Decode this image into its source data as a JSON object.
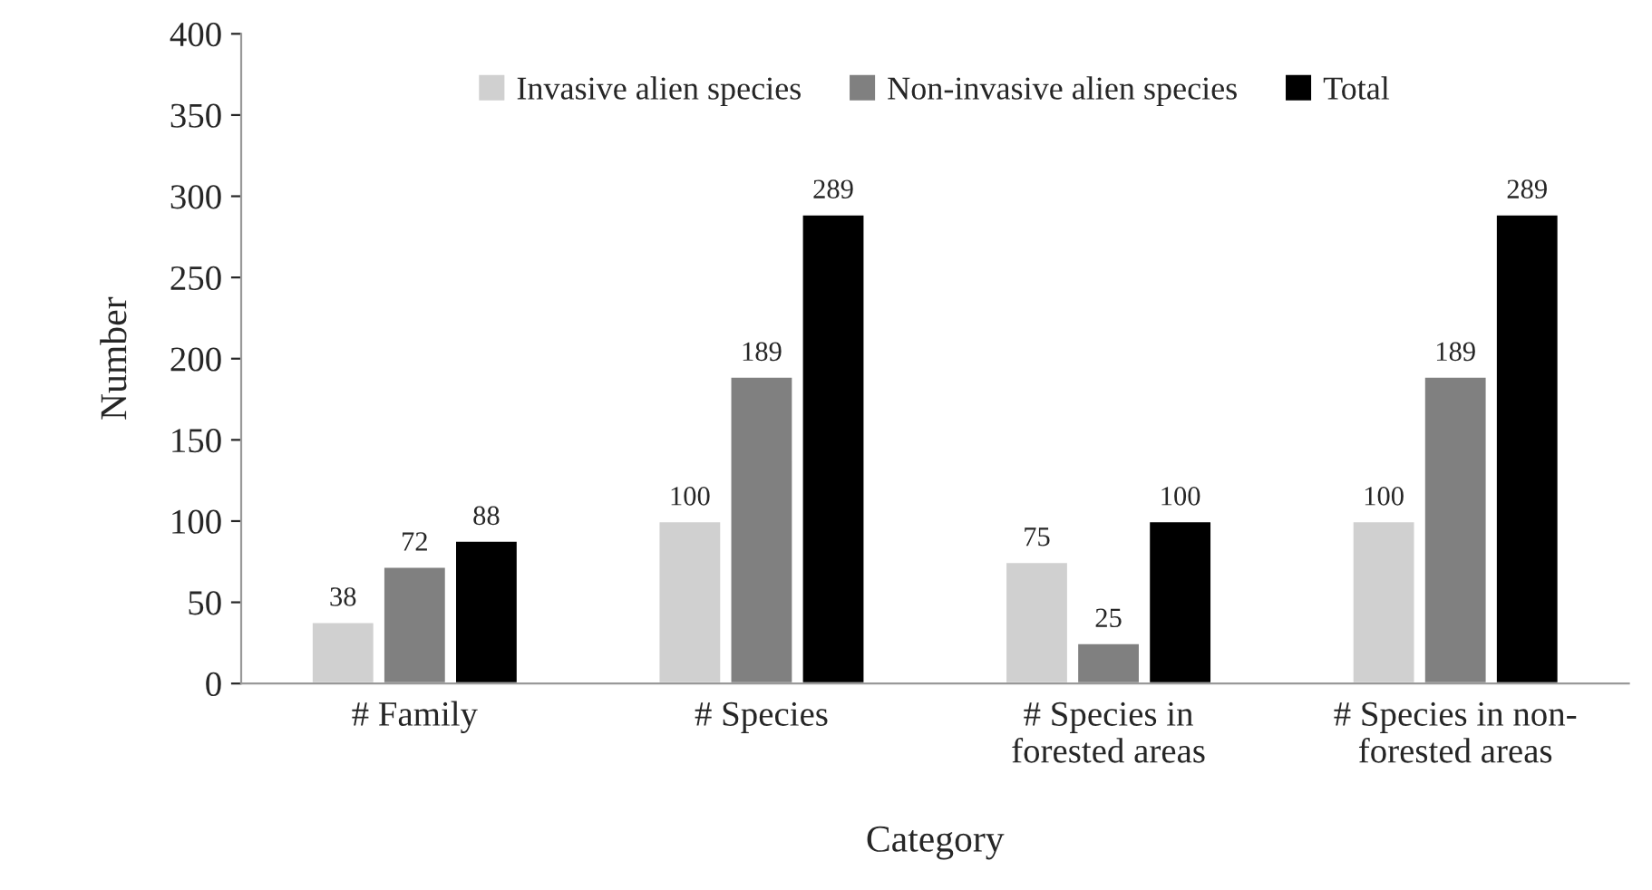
{
  "chart_data": {
    "type": "bar",
    "xlabel": "Category",
    "ylabel": "Number",
    "categories": [
      "# Family",
      "# Species",
      "# Species in forested areas",
      "# Species in non-forested areas"
    ],
    "series": [
      {
        "name": "Invasive alien species",
        "color": "#d0d0d0",
        "values": [
          38,
          100,
          75,
          100
        ]
      },
      {
        "name": "Non-invasive alien species",
        "color": "#808080",
        "values": [
          72,
          189,
          25,
          189
        ]
      },
      {
        "name": "Total",
        "color": "#000000",
        "values": [
          88,
          289,
          100,
          289
        ]
      }
    ],
    "ylim": [
      0,
      400
    ],
    "yticks": [
      0,
      50,
      100,
      150,
      200,
      250,
      300,
      350,
      400
    ],
    "data_labels": true,
    "grid": false,
    "legend": "top"
  }
}
